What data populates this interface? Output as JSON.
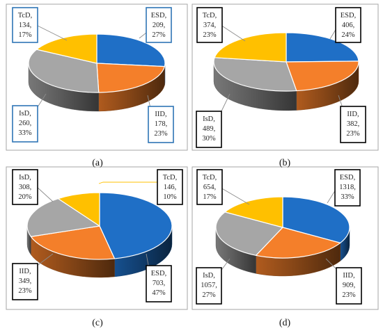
{
  "colors": {
    "ESD": "#1f6fc6",
    "IID": "#f47f2a",
    "IsD": "#a6a6a6",
    "TcD": "#ffc000",
    "frame": "#a6a6a6",
    "box_blue": "#2e75b6",
    "box_black": "#000000",
    "leader_gold": "#ffc000"
  },
  "captions": {
    "a": "(a)",
    "b": "(b)",
    "c": "(c)",
    "d": "(d)"
  },
  "chart_data": [
    {
      "type": "pie",
      "panel": "a",
      "categories": [
        "ESD",
        "IID",
        "IsD",
        "TcD"
      ],
      "values": [
        209,
        178,
        260,
        134
      ],
      "percentages": [
        27,
        23,
        33,
        17
      ],
      "labels": [
        {
          "category": "ESD",
          "name": "ESD,",
          "value": "209,",
          "pct": "27%"
        },
        {
          "category": "IID",
          "name": "IID,",
          "value": "178,",
          "pct": "23%"
        },
        {
          "category": "IsD",
          "name": "IsD,",
          "value": "260,",
          "pct": "33%"
        },
        {
          "category": "TcD",
          "name": "TcD,",
          "value": "134,",
          "pct": "17%"
        }
      ],
      "label_box_style": "blue",
      "legend": "none",
      "title": ""
    },
    {
      "type": "pie",
      "panel": "b",
      "categories": [
        "ESD",
        "IID",
        "IsD",
        "TcD"
      ],
      "values": [
        406,
        382,
        489,
        374
      ],
      "percentages": [
        24,
        23,
        30,
        23
      ],
      "labels": [
        {
          "category": "ESD",
          "name": "ESD,",
          "value": "406,",
          "pct": "24%"
        },
        {
          "category": "IID",
          "name": "IID,",
          "value": "382,",
          "pct": "23%"
        },
        {
          "category": "IsD",
          "name": "IsD,",
          "value": "489,",
          "pct": "30%"
        },
        {
          "category": "TcD",
          "name": "TcD,",
          "value": "374,",
          "pct": "23%"
        }
      ],
      "label_box_style": "black",
      "legend": "none",
      "title": ""
    },
    {
      "type": "pie",
      "panel": "c",
      "categories": [
        "ESD",
        "IID",
        "IsD",
        "TcD"
      ],
      "values": [
        703,
        349,
        308,
        146
      ],
      "percentages": [
        47,
        23,
        20,
        10
      ],
      "labels": [
        {
          "category": "ESD",
          "name": "ESD,",
          "value": "703,",
          "pct": "47%"
        },
        {
          "category": "IID",
          "name": "IID,",
          "value": "349,",
          "pct": "23%"
        },
        {
          "category": "IsD",
          "name": "IsD,",
          "value": "308,",
          "pct": "20%"
        },
        {
          "category": "TcD",
          "name": "TcD,",
          "value": "146,",
          "pct": "10%"
        }
      ],
      "label_box_style": "black",
      "legend": "none",
      "title": ""
    },
    {
      "type": "pie",
      "panel": "d",
      "categories": [
        "ESD",
        "IID",
        "IsD",
        "TcD"
      ],
      "values": [
        1318,
        909,
        1057,
        654
      ],
      "percentages": [
        33,
        23,
        27,
        17
      ],
      "labels": [
        {
          "category": "ESD",
          "name": "ESD,",
          "value": "1318,",
          "pct": "33%"
        },
        {
          "category": "IID",
          "name": "IID,",
          "value": "909,",
          "pct": "23%"
        },
        {
          "category": "IsD",
          "name": "IsD,",
          "value": "1057,",
          "pct": "27%"
        },
        {
          "category": "TcD",
          "name": "TcD,",
          "value": "654,",
          "pct": "17%"
        }
      ],
      "label_box_style": "black",
      "legend": "none",
      "title": ""
    }
  ]
}
